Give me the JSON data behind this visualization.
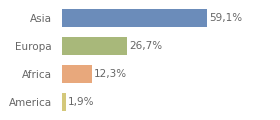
{
  "categories": [
    "Asia",
    "Europa",
    "Africa",
    "America"
  ],
  "values": [
    59.1,
    26.7,
    12.3,
    1.9
  ],
  "bar_colors": [
    "#6b8cba",
    "#a8b87a",
    "#e8a87c",
    "#d4c87a"
  ],
  "label_format": [
    "59,1%",
    "26,7%",
    "12,3%",
    "1,9%"
  ],
  "xlim": [
    0,
    75
  ],
  "figsize": [
    2.8,
    1.2
  ],
  "dpi": 100,
  "background_color": "#ffffff",
  "bar_height": 0.65,
  "text_color": "#666666",
  "font_size": 7.5
}
